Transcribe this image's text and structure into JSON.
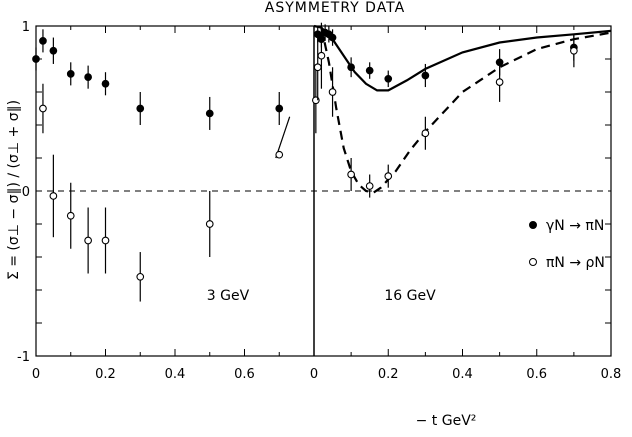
{
  "chart_data": {
    "type": "scatter",
    "title": "ASYMMETRY   DATA",
    "ylabel": "Σ = (σ⊥ − σ∥) / (σ⊥ + σ∥)",
    "xlabel": "− t  GeV²",
    "ylim": [
      -1,
      1
    ],
    "yticks": [
      "1",
      "0",
      "-1"
    ],
    "grid": false,
    "legend_position": "right",
    "legend": [
      {
        "symbol": "filled",
        "label": "γN → πN"
      },
      {
        "symbol": "open",
        "label": "πN → ρN"
      }
    ],
    "panels": [
      {
        "label": "3  GeV",
        "xlim": [
          0,
          0.8
        ],
        "xticks": [
          "0",
          "0.2",
          "0.4",
          "0.6"
        ],
        "series": [
          {
            "symbol": "filled",
            "points": [
              {
                "x": 0.0,
                "y": 0.8,
                "err": 0.07
              },
              {
                "x": 0.02,
                "y": 0.91,
                "err": 0.07
              },
              {
                "x": 0.05,
                "y": 0.85,
                "err": 0.08
              },
              {
                "x": 0.1,
                "y": 0.71,
                "err": 0.07
              },
              {
                "x": 0.15,
                "y": 0.69,
                "err": 0.07
              },
              {
                "x": 0.2,
                "y": 0.65,
                "err": 0.07
              },
              {
                "x": 0.3,
                "y": 0.5,
                "err": 0.1
              },
              {
                "x": 0.5,
                "y": 0.47,
                "err": 0.1
              },
              {
                "x": 0.7,
                "y": 0.5,
                "err": 0.1
              }
            ]
          },
          {
            "symbol": "open",
            "points": [
              {
                "x": 0.02,
                "y": 0.5,
                "err": 0.15
              },
              {
                "x": 0.05,
                "y": -0.03,
                "err": 0.25
              },
              {
                "x": 0.1,
                "y": -0.15,
                "err": 0.2
              },
              {
                "x": 0.15,
                "y": -0.3,
                "err": 0.2
              },
              {
                "x": 0.2,
                "y": -0.3,
                "err": 0.2
              },
              {
                "x": 0.3,
                "y": -0.52,
                "err": 0.15
              },
              {
                "x": 0.5,
                "y": -0.2,
                "err": 0.2
              },
              {
                "x": 0.7,
                "y": 0.22,
                "err": 0.0
              }
            ]
          }
        ],
        "short_segment": [
          [
            0.69,
            0.2
          ],
          [
            0.73,
            0.45
          ]
        ]
      },
      {
        "label": "16    GeV",
        "xlim": [
          0,
          0.8
        ],
        "xticks": [
          "0",
          "0.2",
          "0.4",
          "0.6",
          "0.8"
        ],
        "series": [
          {
            "symbol": "filled",
            "points": [
              {
                "x": 0.01,
                "y": 0.95,
                "err": 0.05
              },
              {
                "x": 0.02,
                "y": 0.92,
                "err": 0.05
              },
              {
                "x": 0.03,
                "y": 0.96,
                "err": 0.05
              },
              {
                "x": 0.04,
                "y": 0.95,
                "err": 0.05
              },
              {
                "x": 0.05,
                "y": 0.93,
                "err": 0.05
              },
              {
                "x": 0.1,
                "y": 0.75,
                "err": 0.06
              },
              {
                "x": 0.15,
                "y": 0.73,
                "err": 0.05
              },
              {
                "x": 0.2,
                "y": 0.68,
                "err": 0.05
              },
              {
                "x": 0.3,
                "y": 0.7,
                "err": 0.07
              },
              {
                "x": 0.5,
                "y": 0.78,
                "err": 0.08
              },
              {
                "x": 0.7,
                "y": 0.87,
                "err": 0.08
              }
            ]
          },
          {
            "symbol": "open",
            "points": [
              {
                "x": 0.005,
                "y": 0.55,
                "err": 0.2
              },
              {
                "x": 0.01,
                "y": 0.75,
                "err": 0.2
              },
              {
                "x": 0.02,
                "y": 0.82,
                "err": 0.2
              },
              {
                "x": 0.05,
                "y": 0.6,
                "err": 0.15
              },
              {
                "x": 0.1,
                "y": 0.1,
                "err": 0.1
              },
              {
                "x": 0.15,
                "y": 0.03,
                "err": 0.07
              },
              {
                "x": 0.2,
                "y": 0.09,
                "err": 0.07
              },
              {
                "x": 0.3,
                "y": 0.35,
                "err": 0.1
              },
              {
                "x": 0.5,
                "y": 0.66,
                "err": 0.12
              },
              {
                "x": 0.7,
                "y": 0.85,
                "err": 0.1
              }
            ]
          }
        ],
        "curves": [
          {
            "style": "solid",
            "points": [
              [
                0.0,
                1.0
              ],
              [
                0.02,
                0.99
              ],
              [
                0.05,
                0.92
              ],
              [
                0.08,
                0.82
              ],
              [
                0.11,
                0.72
              ],
              [
                0.14,
                0.65
              ],
              [
                0.17,
                0.61
              ],
              [
                0.2,
                0.61
              ],
              [
                0.25,
                0.67
              ],
              [
                0.3,
                0.74
              ],
              [
                0.4,
                0.84
              ],
              [
                0.5,
                0.9
              ],
              [
                0.6,
                0.93
              ],
              [
                0.7,
                0.95
              ],
              [
                0.8,
                0.97
              ]
            ]
          },
          {
            "style": "dashed",
            "points": [
              [
                0.02,
                0.99
              ],
              [
                0.04,
                0.78
              ],
              [
                0.06,
                0.5
              ],
              [
                0.08,
                0.26
              ],
              [
                0.1,
                0.12
              ],
              [
                0.12,
                0.04
              ],
              [
                0.14,
                0.0
              ],
              [
                0.16,
                -0.01
              ],
              [
                0.18,
                0.02
              ],
              [
                0.22,
                0.12
              ],
              [
                0.26,
                0.25
              ],
              [
                0.3,
                0.36
              ],
              [
                0.4,
                0.6
              ],
              [
                0.5,
                0.75
              ],
              [
                0.6,
                0.86
              ],
              [
                0.7,
                0.92
              ],
              [
                0.8,
                0.96
              ]
            ]
          }
        ]
      }
    ]
  }
}
